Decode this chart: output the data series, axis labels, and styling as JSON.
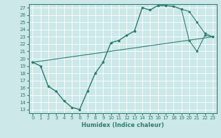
{
  "title": "",
  "xlabel": "Humidex (Indice chaleur)",
  "ylabel": "",
  "bg_color": "#cce8e8",
  "grid_color": "#ffffff",
  "line_color": "#2e7d72",
  "marker_color": "#2e7d72",
  "xlim": [
    -0.5,
    23.5
  ],
  "ylim": [
    12.5,
    27.5
  ],
  "xticks": [
    0,
    1,
    2,
    3,
    4,
    5,
    6,
    7,
    8,
    9,
    10,
    11,
    12,
    13,
    14,
    15,
    16,
    17,
    18,
    19,
    20,
    21,
    22,
    23
  ],
  "yticks": [
    13,
    14,
    15,
    16,
    17,
    18,
    19,
    20,
    21,
    22,
    23,
    24,
    25,
    26,
    27
  ],
  "line1_x": [
    0,
    1,
    2,
    3,
    4,
    5,
    6,
    7,
    8,
    9,
    10,
    11,
    12,
    13,
    14,
    15,
    16,
    17,
    18,
    19,
    20,
    21,
    22,
    23
  ],
  "line1_y": [
    19.5,
    19.0,
    16.2,
    15.5,
    14.2,
    13.3,
    13.0,
    15.5,
    18.0,
    19.5,
    22.2,
    22.5,
    23.2,
    23.8,
    27.0,
    26.7,
    27.3,
    27.3,
    27.2,
    26.8,
    26.5,
    25.0,
    23.5,
    23.0
  ],
  "line2_x": [
    0,
    1,
    2,
    3,
    4,
    5,
    6,
    7,
    8,
    9,
    10,
    11,
    12,
    13,
    14,
    15,
    16,
    17,
    18,
    19,
    20,
    21,
    22,
    23
  ],
  "line2_y": [
    19.5,
    19.0,
    16.2,
    15.5,
    14.2,
    13.3,
    13.0,
    15.5,
    18.0,
    19.5,
    22.2,
    22.5,
    23.2,
    23.8,
    27.0,
    26.7,
    27.3,
    27.3,
    27.2,
    26.8,
    22.5,
    21.0,
    23.2,
    23.0
  ],
  "line3_x": [
    0,
    23
  ],
  "line3_y": [
    19.5,
    23.0
  ],
  "lw": 0.8,
  "ms": 2.0,
  "xlabel_fontsize": 6.0,
  "tick_fontsize": 5.0
}
